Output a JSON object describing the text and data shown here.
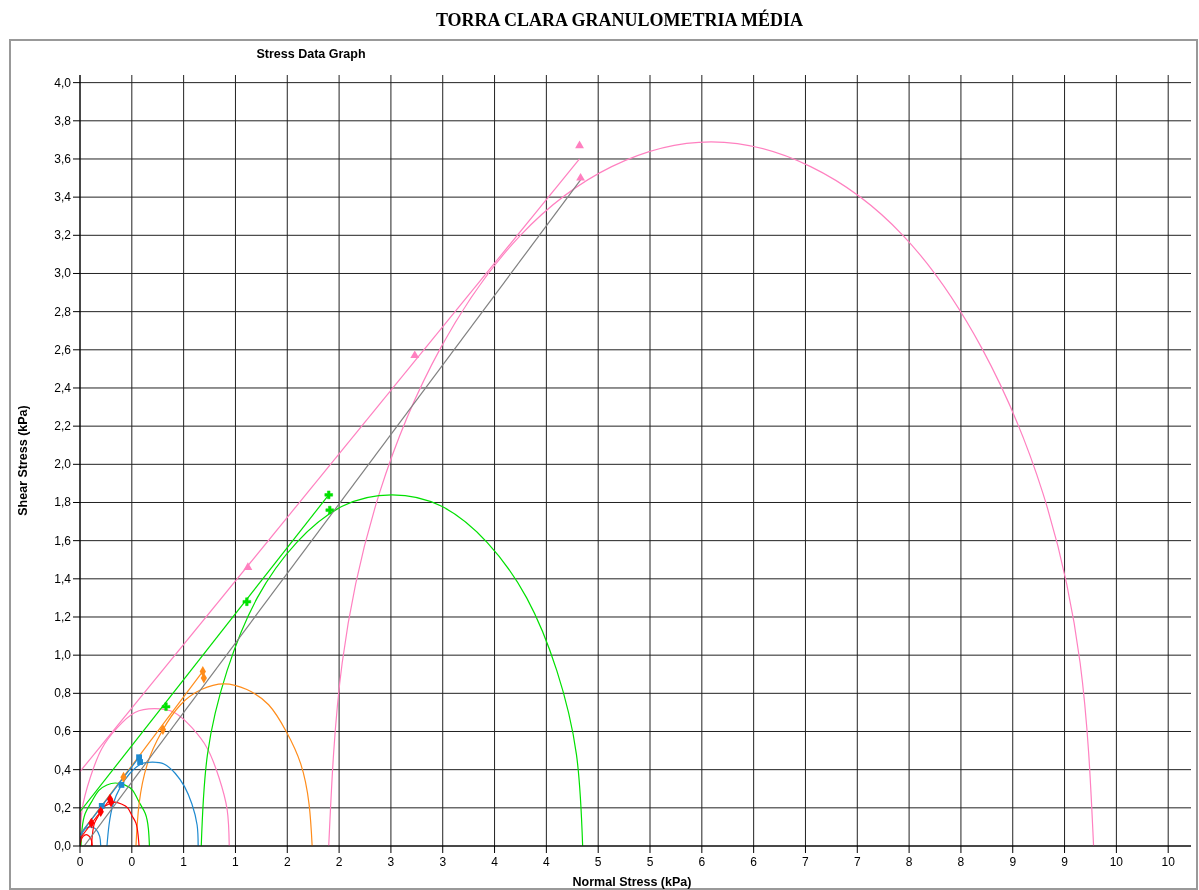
{
  "chart_data": {
    "type": "line",
    "title": "TORRA CLARA GRANULOMETRIA MÉDIA",
    "subtitle": "Stress Data Graph",
    "xlabel": "Normal Stress (kPa)",
    "ylabel": "Shear Stress (kPa)",
    "xlim": [
      0,
      10.72
    ],
    "ylim": [
      0,
      4.04
    ],
    "xticks": [
      {
        "value": 0,
        "label": "0"
      },
      {
        "value": 0.5,
        "label": "0"
      },
      {
        "value": 1,
        "label": "1"
      },
      {
        "value": 1.5,
        "label": "1"
      },
      {
        "value": 2,
        "label": "2"
      },
      {
        "value": 2.5,
        "label": "2"
      },
      {
        "value": 3,
        "label": "3"
      },
      {
        "value": 3.5,
        "label": "3"
      },
      {
        "value": 4,
        "label": "4"
      },
      {
        "value": 4.5,
        "label": "4"
      },
      {
        "value": 5,
        "label": "5"
      },
      {
        "value": 5.5,
        "label": "5"
      },
      {
        "value": 6,
        "label": "6"
      },
      {
        "value": 6.5,
        "label": "6"
      },
      {
        "value": 7,
        "label": "7"
      },
      {
        "value": 7.5,
        "label": "7"
      },
      {
        "value": 8,
        "label": "8"
      },
      {
        "value": 8.5,
        "label": "8"
      },
      {
        "value": 9,
        "label": "9"
      },
      {
        "value": 9.5,
        "label": "9"
      },
      {
        "value": 10,
        "label": "10"
      },
      {
        "value": 10.5,
        "label": "10"
      }
    ],
    "yticks": [
      {
        "value": 0,
        "label": "0,0"
      },
      {
        "value": 0.2,
        "label": "0,2"
      },
      {
        "value": 0.4,
        "label": "0,4"
      },
      {
        "value": 0.6,
        "label": "0,6"
      },
      {
        "value": 0.8,
        "label": "0,8"
      },
      {
        "value": 1,
        "label": "1,0"
      },
      {
        "value": 1.2,
        "label": "1,2"
      },
      {
        "value": 1.4,
        "label": "1,4"
      },
      {
        "value": 1.6,
        "label": "1,6"
      },
      {
        "value": 1.8,
        "label": "1,8"
      },
      {
        "value": 2,
        "label": "2,0"
      },
      {
        "value": 2.2,
        "label": "2,2"
      },
      {
        "value": 2.4,
        "label": "2,4"
      },
      {
        "value": 2.6,
        "label": "2,6"
      },
      {
        "value": 2.8,
        "label": "2,8"
      },
      {
        "value": 3,
        "label": "3,0"
      },
      {
        "value": 3.2,
        "label": "3,2"
      },
      {
        "value": 3.4,
        "label": "3,4"
      },
      {
        "value": 3.6,
        "label": "3,6"
      },
      {
        "value": 3.8,
        "label": "3,8"
      },
      {
        "value": 4,
        "label": "4,0"
      }
    ],
    "grid": true,
    "series": [
      {
        "color": "#ff80c0",
        "x": [
          9.78,
          9.65,
          9.29,
          8.7,
          7.94,
          7.05,
          6.09,
          5.13,
          4.25,
          3.48,
          2.89,
          2.53,
          2.4
        ],
        "values": [
          0,
          0.96,
          1.85,
          2.61,
          3.2,
          3.56,
          3.69,
          3.56,
          3.2,
          2.61,
          1.85,
          0.96,
          0
        ]
      },
      {
        "color": "#ff80c0",
        "x": [
          1.44,
          1.42,
          1.34,
          1.23,
          1.08,
          0.91,
          0.72,
          0.53,
          0.36,
          0.21,
          0.1,
          0.02,
          0.0
        ],
        "values": [
          0,
          0.19,
          0.36,
          0.51,
          0.62,
          0.7,
          0.72,
          0.7,
          0.62,
          0.51,
          0.36,
          0.19,
          0
        ]
      },
      {
        "color": "#00e000",
        "x": [
          4.85,
          4.79,
          4.6,
          4.31,
          3.93,
          3.49,
          3.01,
          2.53,
          2.09,
          1.71,
          1.42,
          1.23,
          1.17
        ],
        "values": [
          0,
          0.48,
          0.92,
          1.3,
          1.59,
          1.78,
          1.84,
          1.78,
          1.59,
          1.3,
          0.92,
          0.48,
          0
        ]
      },
      {
        "color": "#00e000",
        "x": [
          0.67,
          0.66,
          0.63,
          0.57,
          0.51,
          0.43,
          0.34,
          0.26,
          0.18,
          0.11,
          0.05,
          0.02,
          0.01
        ],
        "values": [
          0,
          0.09,
          0.17,
          0.23,
          0.29,
          0.32,
          0.33,
          0.32,
          0.29,
          0.23,
          0.17,
          0.09,
          0
        ]
      },
      {
        "color": "#ff8c1a",
        "x": [
          2.24,
          2.21,
          2.13,
          1.99,
          1.82,
          1.61,
          1.39,
          1.17,
          0.97,
          0.79,
          0.65,
          0.57,
          0.54
        ],
        "values": [
          0,
          0.22,
          0.43,
          0.6,
          0.74,
          0.82,
          0.85,
          0.82,
          0.74,
          0.6,
          0.43,
          0.22,
          0
        ]
      },
      {
        "color": "#1e8ad0",
        "x": [
          1.14,
          1.13,
          1.08,
          1.01,
          0.92,
          0.81,
          0.7,
          0.59,
          0.48,
          0.39,
          0.32,
          0.28,
          0.26
        ],
        "values": [
          0,
          0.11,
          0.22,
          0.31,
          0.38,
          0.43,
          0.44,
          0.43,
          0.38,
          0.31,
          0.22,
          0.11,
          0
        ]
      },
      {
        "color": "#1e8ad0",
        "x": [
          0.2,
          0.19,
          0.15,
          0.1,
          0.05,
          0.01,
          0
        ],
        "values": [
          0,
          0.05,
          0.09,
          0.1,
          0.09,
          0.05,
          0
        ]
      },
      {
        "color": "#ff0000",
        "x": [
          0.57,
          0.56,
          0.54,
          0.5,
          0.46,
          0.4,
          0.34,
          0.28,
          0.22,
          0.18,
          0.14,
          0.12,
          0.11
        ],
        "values": [
          0,
          0.06,
          0.12,
          0.16,
          0.2,
          0.22,
          0.23,
          0.22,
          0.2,
          0.16,
          0.12,
          0.06,
          0
        ]
      },
      {
        "color": "#ff0000",
        "x": [
          0.12,
          0.11,
          0.09,
          0.06,
          0.03,
          0.01,
          0
        ],
        "values": [
          0,
          0.03,
          0.05,
          0.06,
          0.05,
          0.03,
          0
        ]
      },
      {
        "color": "#ff80c0",
        "x": [
          0,
          4.82
        ],
        "values": [
          0.39,
          3.6
        ]
      },
      {
        "color": "#00e000",
        "x": [
          0,
          2.4
        ],
        "values": [
          0.18,
          1.84
        ]
      },
      {
        "color": "#ff8c1a",
        "x": [
          0,
          1.185
        ],
        "values": [
          0.06,
          0.915
        ]
      },
      {
        "color": "#1e8ad0",
        "x": [
          0,
          0.57
        ],
        "values": [
          0.06,
          0.465
        ]
      },
      {
        "color": "#ff0000",
        "x": [
          0,
          0.29
        ],
        "values": [
          0.04,
          0.245
        ]
      },
      {
        "color": "#808080",
        "x": [
          0.04,
          4.83
        ],
        "values": [
          0,
          3.49
        ]
      },
      {
        "type": "scatter",
        "color": "#ff80c0",
        "marker": "triangle",
        "x": [
          1.62,
          3.23,
          4.82,
          4.83
        ],
        "values": [
          1.46,
          2.57,
          3.67,
          3.5
        ]
      },
      {
        "type": "scatter",
        "color": "#00e000",
        "marker": "cross",
        "x": [
          0.83,
          1.61,
          2.4,
          2.41
        ],
        "values": [
          0.73,
          1.28,
          1.84,
          1.76
        ]
      },
      {
        "type": "scatter",
        "color": "#ff8c1a",
        "marker": "diamond",
        "x": [
          0.42,
          0.8,
          1.185,
          1.195
        ],
        "values": [
          0.36,
          0.61,
          0.915,
          0.88
        ]
      },
      {
        "type": "scatter",
        "color": "#1e8ad0",
        "marker": "square",
        "x": [
          0.21,
          0.4,
          0.57,
          0.58
        ],
        "values": [
          0.21,
          0.32,
          0.465,
          0.44
        ]
      },
      {
        "type": "scatter",
        "color": "#ff0000",
        "marker": "diamond",
        "x": [
          0.11,
          0.2,
          0.29,
          0.3
        ],
        "values": [
          0.12,
          0.18,
          0.245,
          0.23
        ]
      }
    ]
  }
}
